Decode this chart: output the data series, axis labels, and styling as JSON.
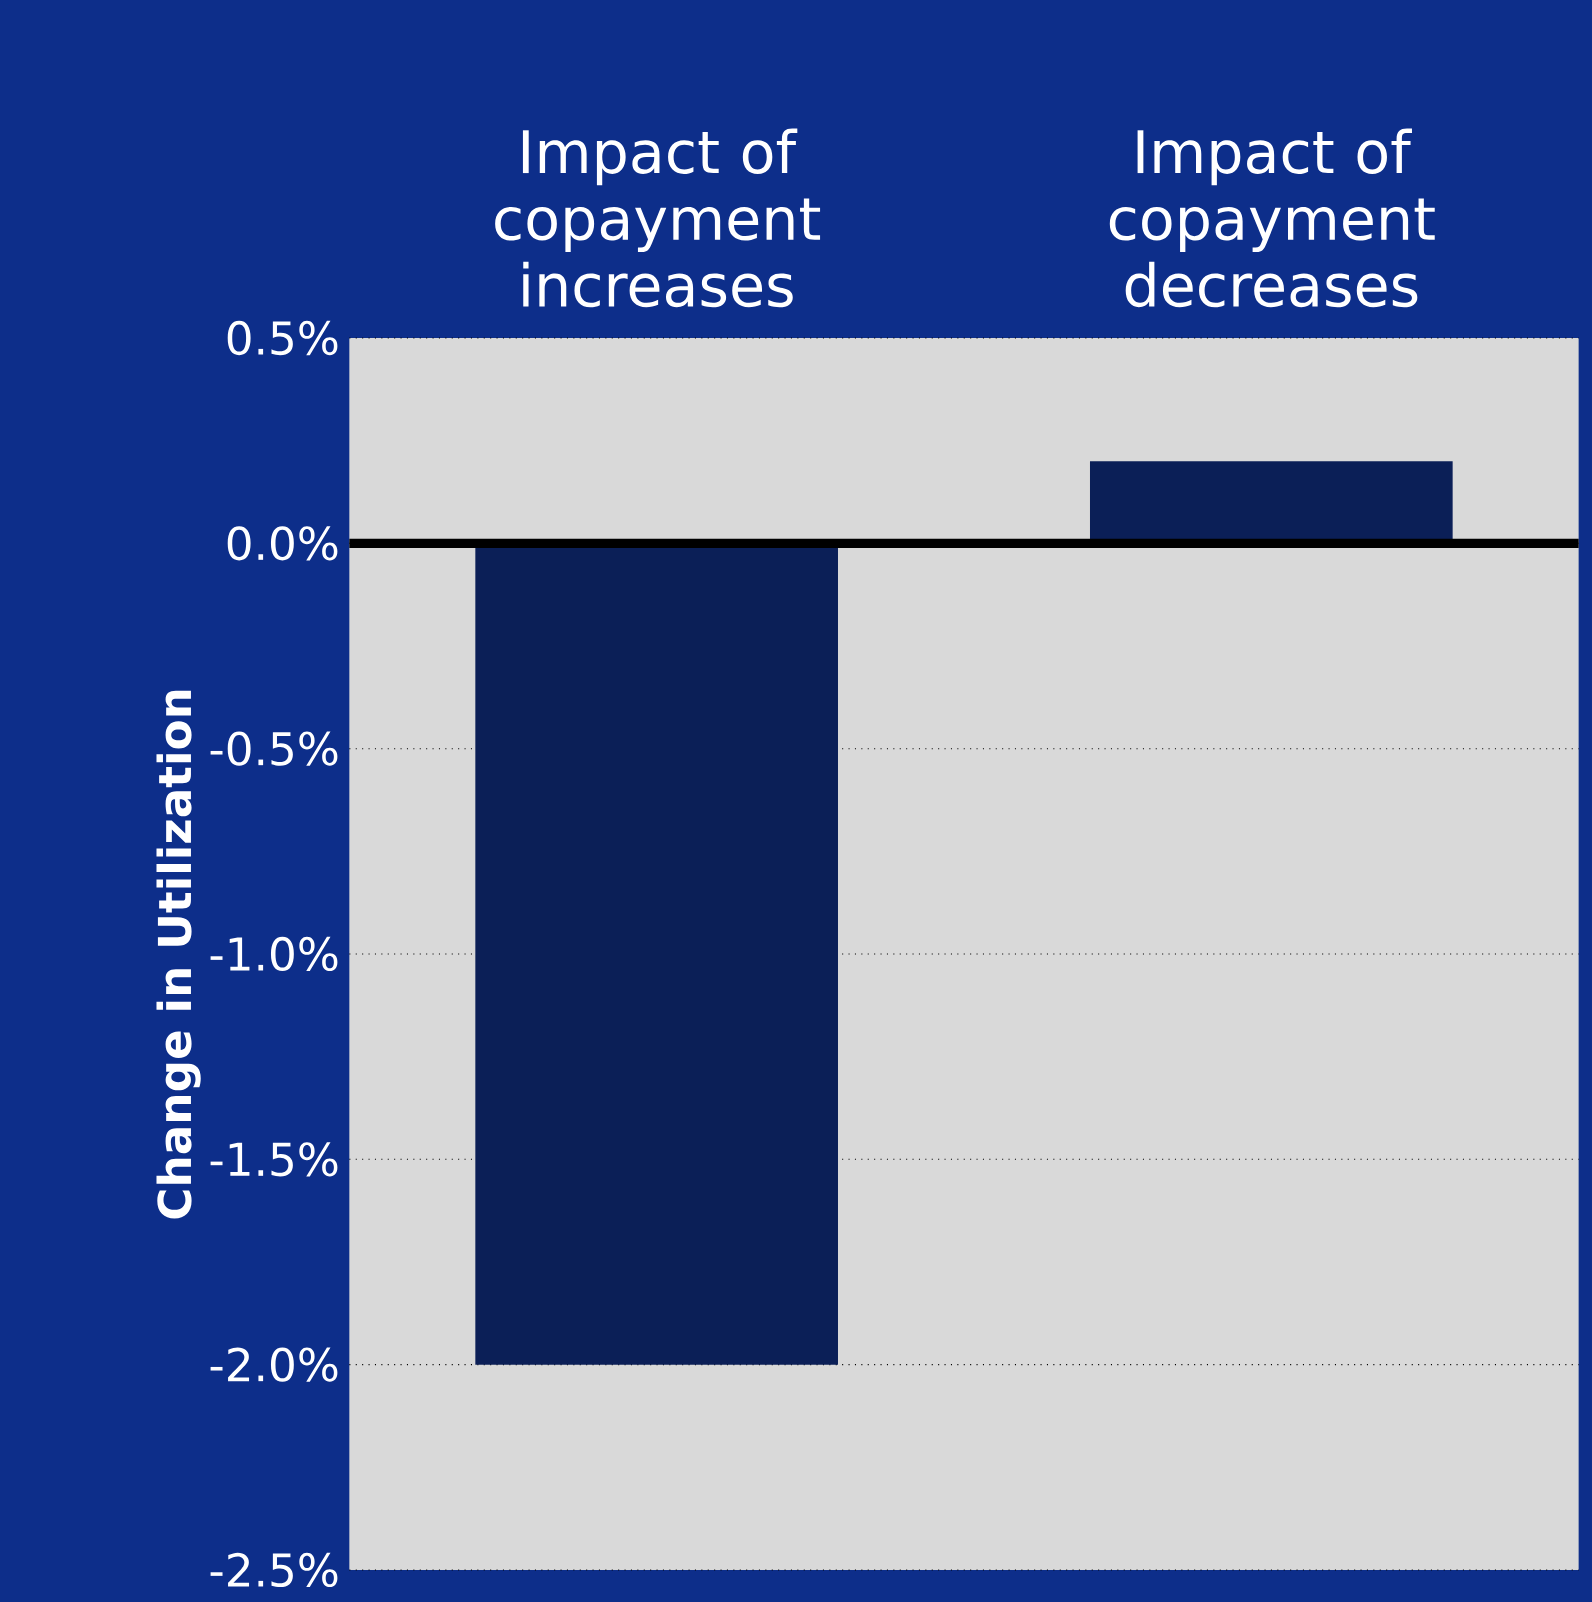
{
  "chart_data": {
    "type": "bar",
    "ylabel": "Change in Utilization",
    "categories": [
      "Impact of copayment increases",
      "Impact of copayment decreases"
    ],
    "values": [
      -2.0,
      0.2
    ],
    "color": "#0b1f57",
    "ylim": [
      -2.5,
      0.5
    ],
    "yticks": [
      {
        "value": -2.5,
        "label": "-2.5%"
      },
      {
        "value": -2.0,
        "label": "-2.0%"
      },
      {
        "value": -1.5,
        "label": "-1.5%"
      },
      {
        "value": -1.0,
        "label": "-1.0%"
      },
      {
        "value": -0.5,
        "label": "-0.5%"
      },
      {
        "value": 0.0,
        "label": "0.0%"
      },
      {
        "value": 0.5,
        "label": "0.5%"
      }
    ],
    "grid": "y"
  }
}
